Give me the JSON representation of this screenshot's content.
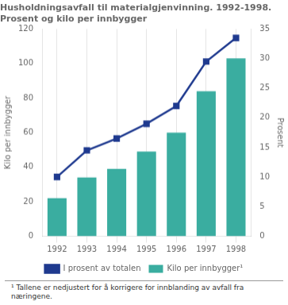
{
  "chart_data": {
    "type": "bar",
    "title": "Husholdningsavfall til materialgjenvinning. 1992-1998.",
    "subtitle": "Prosent og kilo per innbygger",
    "ylabel": "Kilo per innbygger",
    "y2label": "Prosent",
    "annotations": [
      "¹  Tallene er nedjustert for å korrigere for innblanding av avfall fra næringene."
    ],
    "categories": [
      "1992",
      "1993",
      "1994",
      "1995",
      "1996",
      "1997",
      "1998"
    ],
    "series": [
      {
        "name": "Kilo per innbygger¹",
        "type": "bar",
        "color": "#3AADA0",
        "values": [
          22,
          34,
          39,
          49,
          60,
          84,
          103
        ]
      },
      {
        "name": "I prosent av totalen",
        "type": "line",
        "color": "#1F3A8F",
        "marker": "square",
        "axis": "y2",
        "values": [
          10,
          14.5,
          16.5,
          19,
          22,
          29.5,
          33.5
        ]
      }
    ],
    "ylim": [
      0,
      120
    ],
    "yticks": [
      0,
      20,
      40,
      60,
      80,
      100,
      120
    ],
    "y2lim": [
      0,
      35
    ],
    "y2ticks": [
      0,
      5,
      10,
      15,
      20,
      25,
      30,
      35
    ],
    "grid": "x",
    "legend": "bottom"
  }
}
